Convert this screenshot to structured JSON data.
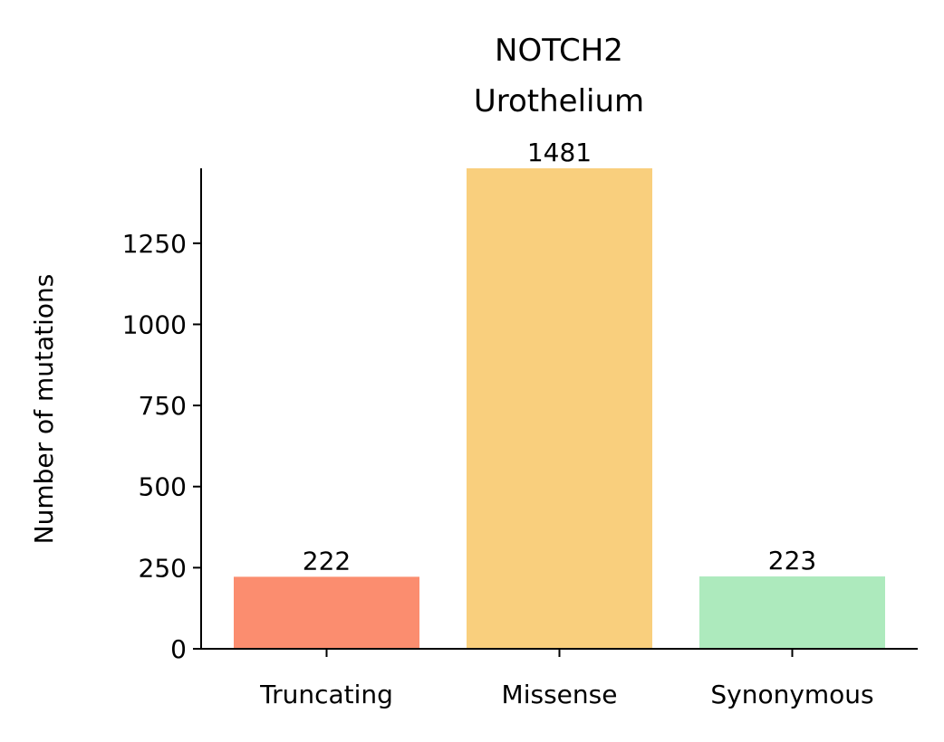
{
  "chart_data": {
    "type": "bar",
    "title_lines": [
      "NOTCH2",
      "Urothelium"
    ],
    "xlabel": "",
    "ylabel": "Number of mutations",
    "categories": [
      "Truncating",
      "Missense",
      "Synonymous"
    ],
    "values": [
      222,
      1481,
      223
    ],
    "data_labels": [
      "222",
      "1481",
      "223"
    ],
    "colors": [
      "#fb8d6f",
      "#f9cf7d",
      "#adeabd"
    ],
    "ylim": [
      0,
      1481
    ],
    "yticks": [
      0,
      250,
      500,
      750,
      1000,
      1250
    ],
    "ytick_labels": [
      "0",
      "250",
      "500",
      "750",
      "1000",
      "1250"
    ],
    "grid": false,
    "legend": "none"
  }
}
